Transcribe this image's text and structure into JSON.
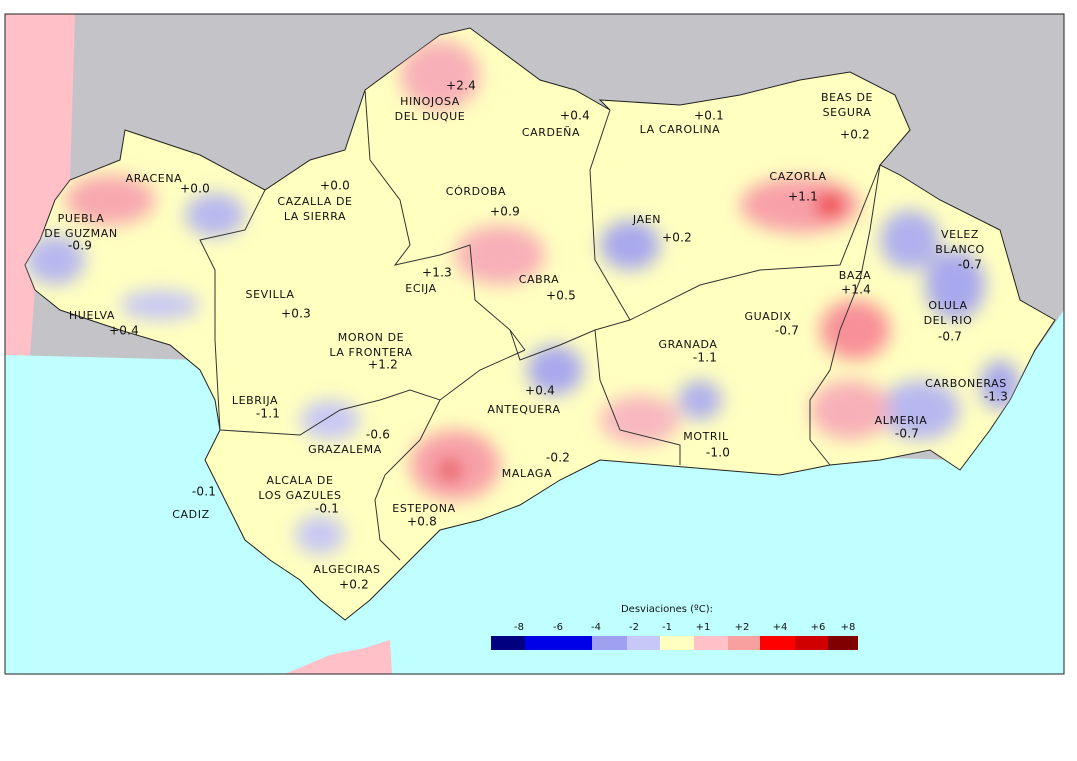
{
  "map": {
    "stations": [
      {
        "name": [
          "HINOJOSA",
          "DEL DUQUE"
        ],
        "value": "+2.4"
      },
      {
        "name": [
          "CARDEÑA"
        ],
        "value": "+0.4"
      },
      {
        "name": [
          "LA CAROLINA"
        ],
        "value": "+0.1"
      },
      {
        "name": [
          "BEAS DE",
          "SEGURA"
        ],
        "value": "+0.2"
      },
      {
        "name": [
          "ARACENA"
        ],
        "value": "+0.0"
      },
      {
        "name": [
          "CAZALLA DE",
          "LA SIERRA"
        ],
        "value": "+0.0"
      },
      {
        "name": [
          "CÓRDOBA"
        ],
        "value": "+0.9"
      },
      {
        "name": [
          "CAZORLA"
        ],
        "value": "+1.1"
      },
      {
        "name": [
          "PUEBLA",
          "DE GUZMAN"
        ],
        "value": "-0.9"
      },
      {
        "name": [
          "JAEN"
        ],
        "value": "+0.2"
      },
      {
        "name": [
          "VELEZ",
          "BLANCO"
        ],
        "value": "-0.7"
      },
      {
        "name": [
          "ECIJA"
        ],
        "value": "+1.3"
      },
      {
        "name": [
          "CABRA"
        ],
        "value": "+0.5"
      },
      {
        "name": [
          "BAZA"
        ],
        "value": "+1.4"
      },
      {
        "name": [
          "SEVILLA"
        ],
        "value": "+0.3"
      },
      {
        "name": [
          "OLULA",
          "DEL RIO"
        ],
        "value": "-0.7"
      },
      {
        "name": [
          "HUELVA"
        ],
        "value": "+0.4"
      },
      {
        "name": [
          "GUADIX"
        ],
        "value": "-0.7"
      },
      {
        "name": [
          "MORON DE",
          "LA FRONTERA"
        ],
        "value": "+1.2"
      },
      {
        "name": [
          "GRANADA"
        ],
        "value": "-1.1"
      },
      {
        "name": [
          "CARBONERAS"
        ],
        "value": "-1.3"
      },
      {
        "name": [
          "ANTEQUERA"
        ],
        "value": "+0.4"
      },
      {
        "name": [
          "LEBRIJA"
        ],
        "value": "-1.1"
      },
      {
        "name": [
          "ALMERIA"
        ],
        "value": "-0.7"
      },
      {
        "name": [
          "GRAZALEMA"
        ],
        "value": "-0.6"
      },
      {
        "name": [
          "MOTRIL"
        ],
        "value": "-1.0"
      },
      {
        "name": [
          "MALAGA"
        ],
        "value": "-0.2"
      },
      {
        "name": [
          "CADIZ"
        ],
        "value": "-0.1"
      },
      {
        "name": [
          "ALCALA DE",
          "LOS GAZULES"
        ],
        "value": "-0.1"
      },
      {
        "name": [
          "ESTEPONA"
        ],
        "value": "+0.8"
      },
      {
        "name": [
          "ALGECIRAS"
        ],
        "value": "+0.2"
      }
    ],
    "legend": {
      "title": "Desviaciones (ºC):",
      "labels": [
        "-8",
        "-6",
        "-4",
        "-2",
        "-1",
        "+1",
        "+2",
        "+4",
        "+6",
        "+8"
      ]
    }
  }
}
